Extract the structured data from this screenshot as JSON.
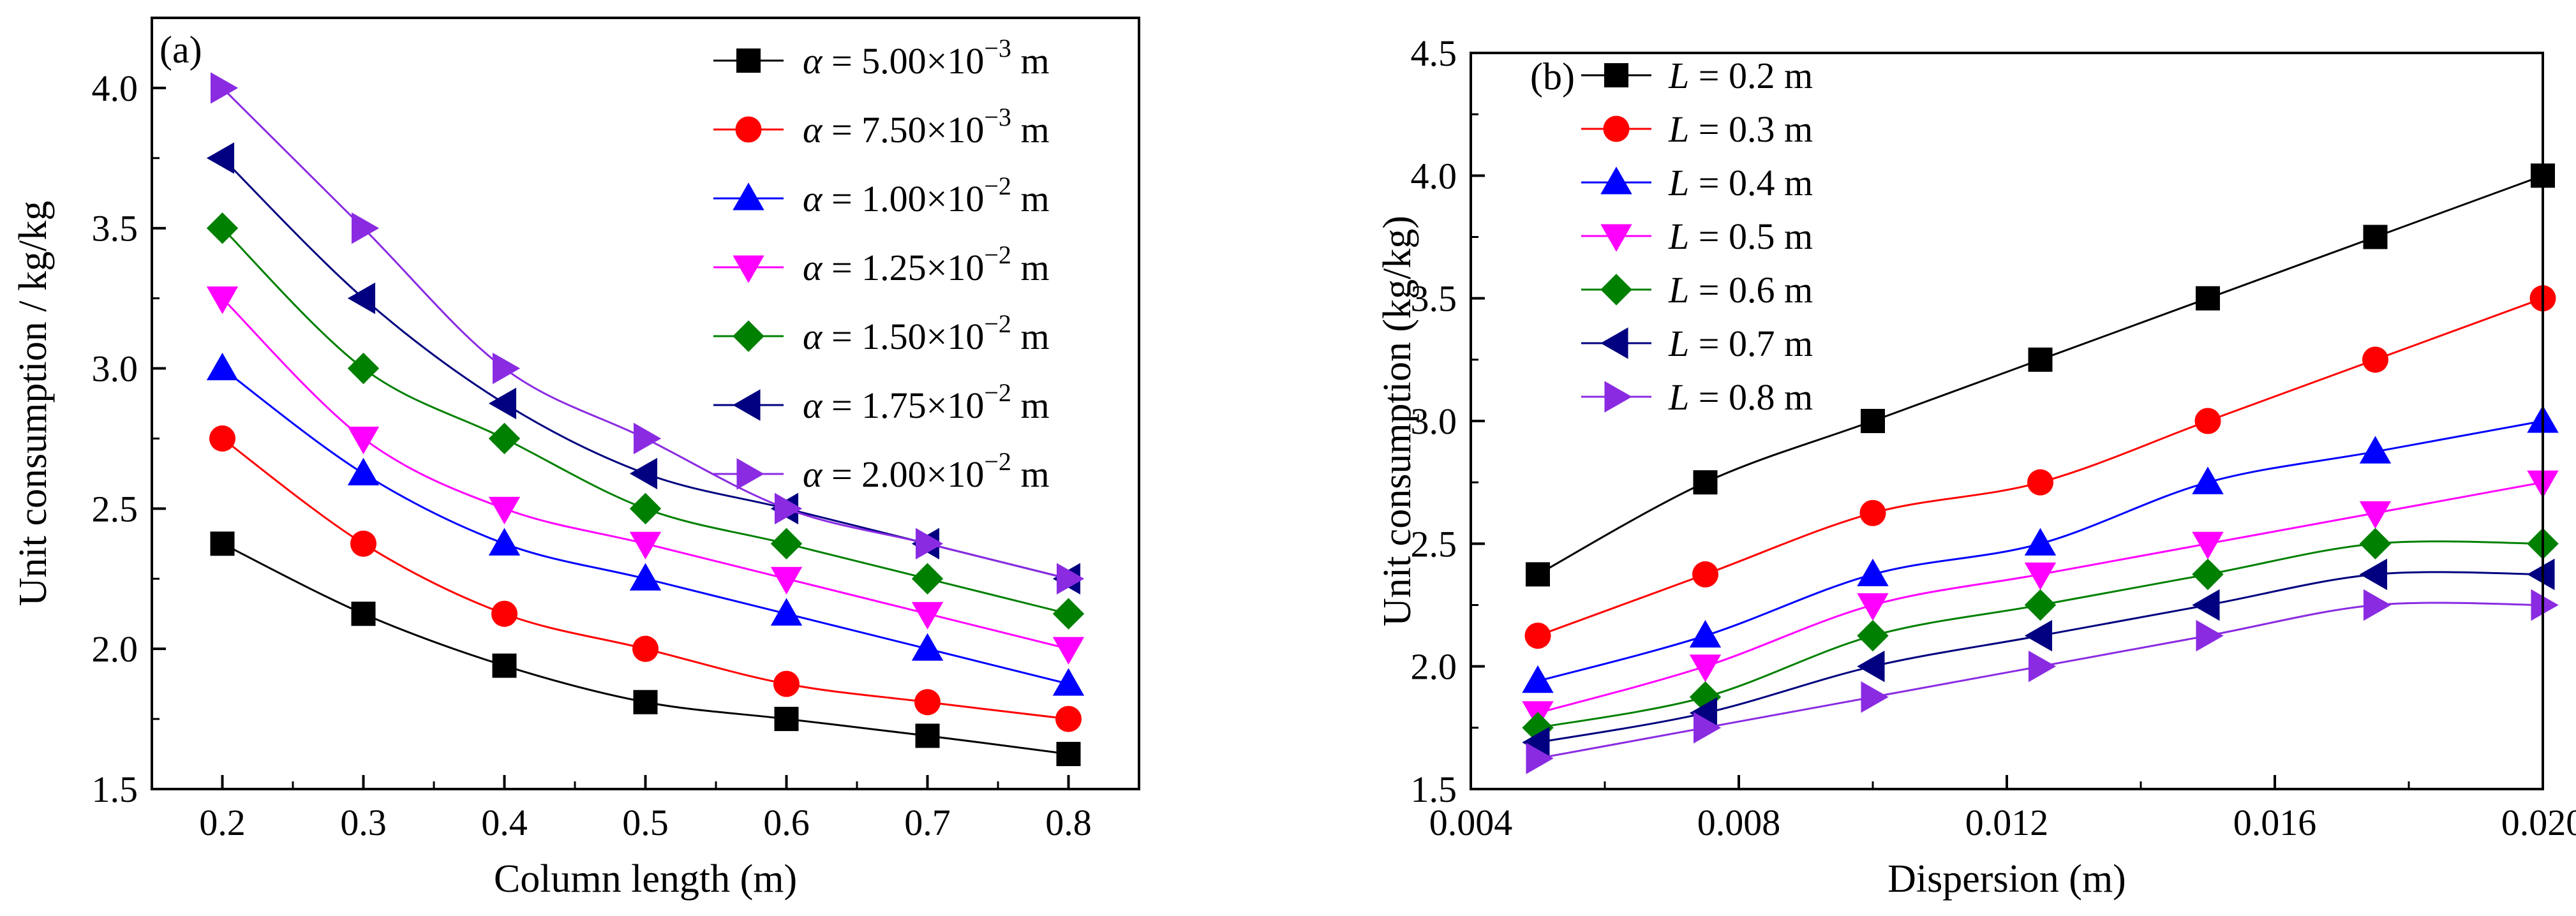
{
  "chart_data": [
    {
      "type": "line",
      "panel_label": "(a)",
      "xlabel": "Column length (m)",
      "ylabel": "Unit consumption / kg/kg",
      "xlim": [
        0.15,
        0.85
      ],
      "ylim": [
        1.5,
        4.25
      ],
      "xticks": [
        0.2,
        0.3,
        0.4,
        0.5,
        0.6,
        0.7,
        0.8
      ],
      "xtick_labels": [
        "0.2",
        "0.3",
        "0.4",
        "0.5",
        "0.6",
        "0.7",
        "0.8"
      ],
      "yticks": [
        1.5,
        2.0,
        2.5,
        3.0,
        3.5,
        4.0
      ],
      "ytick_labels": [
        "1.5",
        "2.0",
        "2.5",
        "3.0",
        "3.5",
        "4.0"
      ],
      "legend_position": "top-right",
      "x": [
        0.2,
        0.3,
        0.4,
        0.5,
        0.6,
        0.7,
        0.8
      ],
      "series": [
        {
          "label": {
            "sym": "α",
            "mid": " = 5.00×10",
            "sup": "−3",
            "end": " m"
          },
          "color": "#000000",
          "marker": "square",
          "values": [
            2.375,
            2.125,
            1.94,
            1.81,
            1.75,
            1.69,
            1.625
          ]
        },
        {
          "label": {
            "sym": "α",
            "mid": " = 7.50×10",
            "sup": "−3",
            "end": " m"
          },
          "color": "#ff0000",
          "marker": "circle",
          "values": [
            2.75,
            2.375,
            2.125,
            2.0,
            1.875,
            1.81,
            1.75
          ]
        },
        {
          "label": {
            "sym": "α",
            "mid": " = 1.00×10",
            "sup": "−2",
            "end": " m"
          },
          "color": "#0000ff",
          "marker": "triangle-up",
          "values": [
            3.0,
            2.625,
            2.375,
            2.25,
            2.125,
            2.0,
            1.875
          ]
        },
        {
          "label": {
            "sym": "α",
            "mid": " = 1.25×10",
            "sup": "−2",
            "end": " m"
          },
          "color": "#ff00ff",
          "marker": "triangle-down",
          "values": [
            3.25,
            2.75,
            2.5,
            2.375,
            2.25,
            2.125,
            2.0
          ]
        },
        {
          "label": {
            "sym": "α",
            "mid": " = 1.50×10",
            "sup": "−2",
            "end": " m"
          },
          "color": "#008000",
          "marker": "diamond",
          "values": [
            3.5,
            3.0,
            2.75,
            2.5,
            2.375,
            2.25,
            2.125
          ]
        },
        {
          "label": {
            "sym": "α",
            "mid": " = 1.75×10",
            "sup": "−2",
            "end": " m"
          },
          "color": "#000080",
          "marker": "triangle-left",
          "values": [
            3.75,
            3.25,
            2.875,
            2.625,
            2.5,
            2.375,
            2.25
          ]
        },
        {
          "label": {
            "sym": "α",
            "mid": " = 2.00×10",
            "sup": "−2",
            "end": " m"
          },
          "color": "#8a2be2",
          "marker": "triangle-right",
          "values": [
            4.0,
            3.5,
            3.0,
            2.75,
            2.5,
            2.375,
            2.25
          ]
        }
      ]
    },
    {
      "type": "line",
      "panel_label": "(b)",
      "xlabel": "Dispersion (m)",
      "ylabel": "Unit consumption (kg/kg)",
      "xlim": [
        0.004,
        0.02
      ],
      "ylim": [
        1.5,
        4.5
      ],
      "xticks": [
        0.004,
        0.008,
        0.012,
        0.016,
        0.02
      ],
      "xtick_labels": [
        "0.004",
        "0.008",
        "0.012",
        "0.016",
        "0.020"
      ],
      "yticks": [
        1.5,
        2.0,
        2.5,
        3.0,
        3.5,
        4.0,
        4.5
      ],
      "ytick_labels": [
        "1.5",
        "2.0",
        "2.5",
        "3.0",
        "3.5",
        "4.0",
        "4.5"
      ],
      "legend_position": "top-left",
      "x": [
        0.005,
        0.0075,
        0.01,
        0.0125,
        0.015,
        0.0175,
        0.02
      ],
      "series": [
        {
          "label": {
            "sym": "L",
            "mid": " = 0.2 m",
            "sup": "",
            "end": ""
          },
          "color": "#000000",
          "marker": "square",
          "values": [
            2.375,
            2.75,
            3.0,
            3.25,
            3.5,
            3.75,
            4.0
          ]
        },
        {
          "label": {
            "sym": "L",
            "mid": " = 0.3 m",
            "sup": "",
            "end": ""
          },
          "color": "#ff0000",
          "marker": "circle",
          "values": [
            2.125,
            2.375,
            2.625,
            2.75,
            3.0,
            3.25,
            3.5
          ]
        },
        {
          "label": {
            "sym": "L",
            "mid": " = 0.4 m",
            "sup": "",
            "end": ""
          },
          "color": "#0000ff",
          "marker": "triangle-up",
          "values": [
            1.94,
            2.125,
            2.375,
            2.5,
            2.75,
            2.875,
            3.0
          ]
        },
        {
          "label": {
            "sym": "L",
            "mid": " = 0.5 m",
            "sup": "",
            "end": ""
          },
          "color": "#ff00ff",
          "marker": "triangle-down",
          "values": [
            1.81,
            2.0,
            2.25,
            2.375,
            2.5,
            2.625,
            2.75
          ]
        },
        {
          "label": {
            "sym": "L",
            "mid": " = 0.6 m",
            "sup": "",
            "end": ""
          },
          "color": "#008000",
          "marker": "diamond",
          "values": [
            1.75,
            1.875,
            2.125,
            2.25,
            2.375,
            2.5,
            2.5
          ]
        },
        {
          "label": {
            "sym": "L",
            "mid": " = 0.7 m",
            "sup": "",
            "end": ""
          },
          "color": "#000080",
          "marker": "triangle-left",
          "values": [
            1.69,
            1.81,
            2.0,
            2.125,
            2.25,
            2.375,
            2.375
          ]
        },
        {
          "label": {
            "sym": "L",
            "mid": " = 0.8 m",
            "sup": "",
            "end": ""
          },
          "color": "#8a2be2",
          "marker": "triangle-right",
          "values": [
            1.625,
            1.75,
            1.875,
            2.0,
            2.125,
            2.25,
            2.25
          ]
        }
      ]
    }
  ]
}
